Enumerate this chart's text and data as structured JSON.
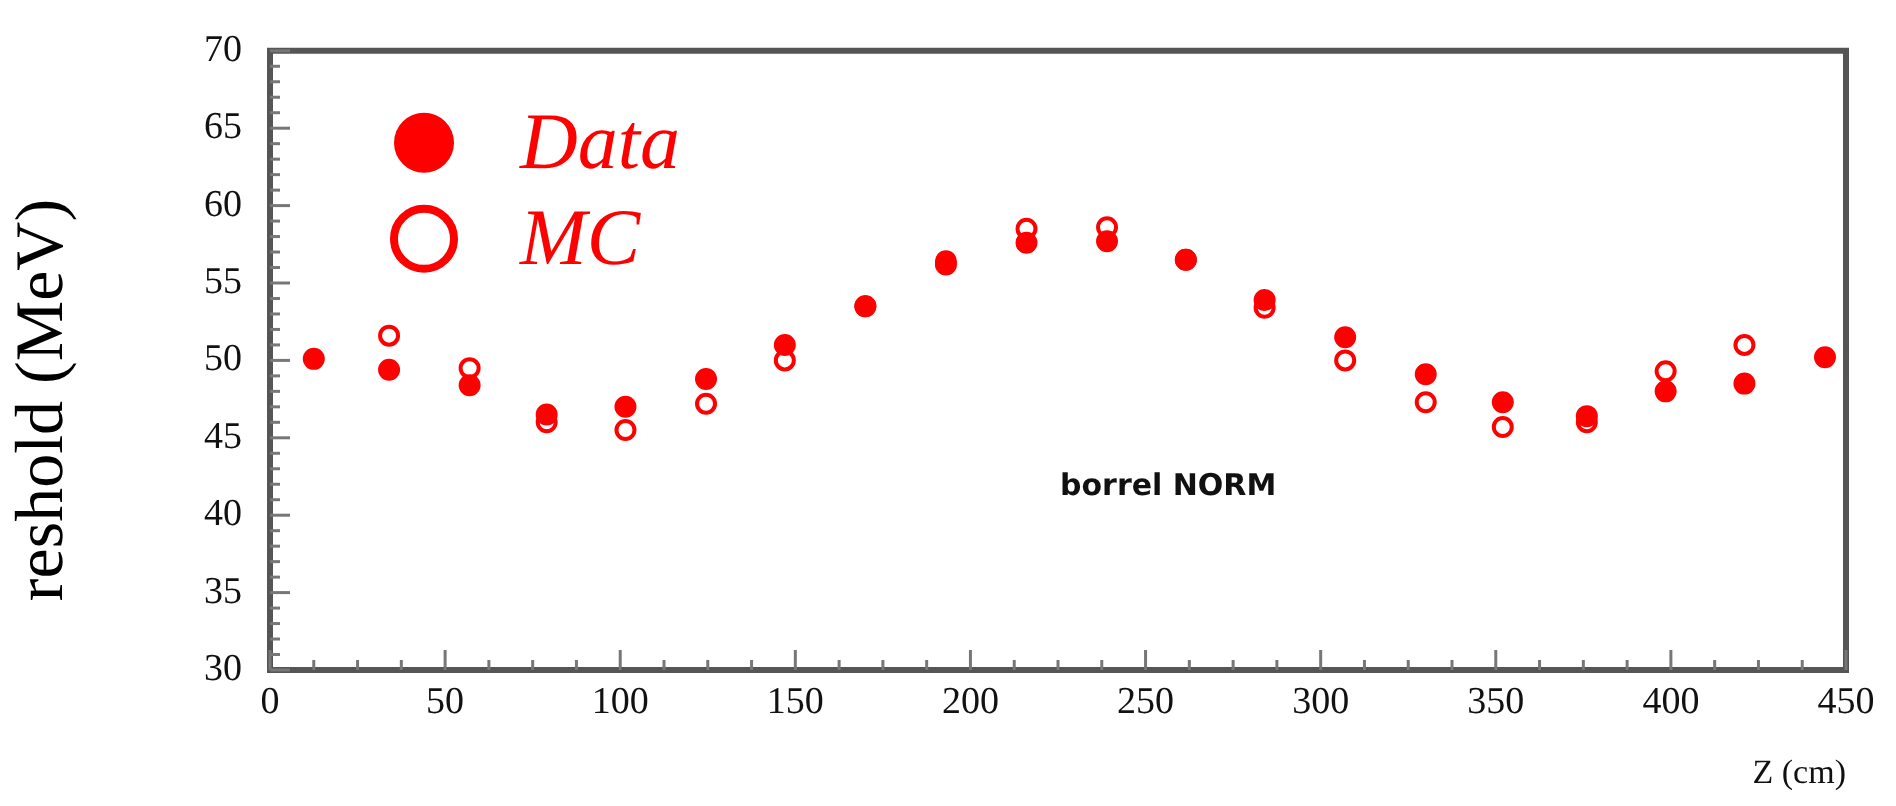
{
  "chart_data": {
    "type": "scatter",
    "xlabel": "Z (cm)",
    "ylabel": "reshold (MeV)",
    "legend": "top left",
    "marker": "circle",
    "grid": false,
    "x": [
      12.5,
      34,
      57,
      79,
      101.5,
      124.5,
      147,
      170,
      193,
      216,
      239,
      261.5,
      284,
      307,
      330,
      352,
      376,
      398.5,
      421,
      444
    ],
    "series": [
      {
        "name": "Data",
        "color": "#ff0000",
        "values": [
          50.1,
          49.4,
          48.4,
          46.5,
          47.0,
          48.8,
          51.0,
          53.5,
          56.2,
          57.6,
          57.7,
          56.5,
          53.9,
          51.5,
          49.1,
          47.3,
          46.4,
          48.0,
          48.5,
          50.2
        ]
      },
      {
        "name": "MC",
        "color": "#ff0000",
        "values": [
          null,
          51.6,
          49.5,
          46.0,
          45.5,
          47.2,
          50.0,
          53.5,
          56.4,
          58.5,
          58.6,
          56.5,
          53.4,
          50.0,
          47.3,
          45.7,
          46.0,
          49.3,
          51.0,
          null
        ]
      }
    ],
    "xlim": [
      0,
      450
    ],
    "xticks": [
      0,
      50,
      100,
      150,
      200,
      250,
      300,
      350,
      400,
      450
    ],
    "ylim": [
      30,
      70
    ],
    "yticks": [
      30,
      35,
      40,
      45,
      50,
      55,
      60,
      65,
      70
    ],
    "annotations": [
      "borrel NORM"
    ]
  }
}
